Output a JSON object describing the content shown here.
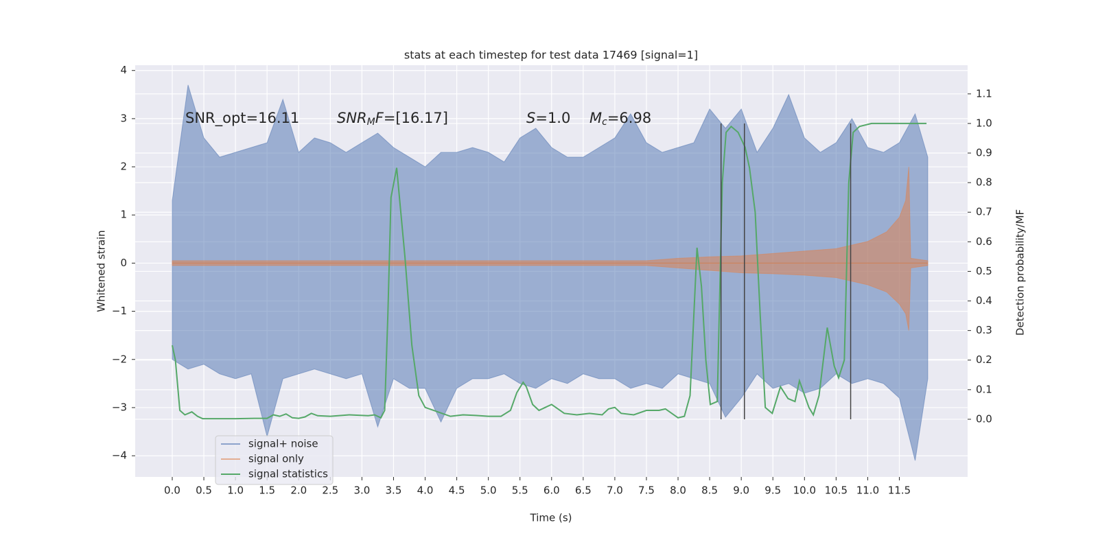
{
  "chart_data": {
    "type": "line",
    "title": "stats at each timestep for test data 17469 [signal=1]",
    "x_label": "Time (s)",
    "y_label": "Whitened strain",
    "y2_label": "Detection probability/MF",
    "xlim": [
      -0.586,
      12.58
    ],
    "ylim": [
      -4.44,
      4.11
    ],
    "y2lim": [
      -0.195,
      1.197
    ],
    "grid": true,
    "legend": "lower left",
    "xticks": [
      {
        "value": 0,
        "label": "0.0"
      },
      0.5,
      {
        "value": 1,
        "label": "1.0"
      },
      1.5,
      {
        "value": 2,
        "label": "2.0"
      },
      2.5,
      {
        "value": 3,
        "label": "3.0"
      },
      3.5,
      {
        "value": 4,
        "label": "4.0"
      },
      4.5,
      {
        "value": 5,
        "label": "5.0"
      },
      5.5,
      {
        "value": 6,
        "label": "6.0"
      },
      6.5,
      {
        "value": 7,
        "label": "7.0"
      },
      7.5,
      {
        "value": 8,
        "label": "8.0"
      },
      8.5,
      {
        "value": 9,
        "label": "9.0"
      },
      9.5,
      {
        "value": 10,
        "label": "10.0"
      },
      10.5,
      {
        "value": 11,
        "label": "11.0"
      },
      11.5
    ],
    "yticks": [
      {
        "value": -4,
        "label": "−4"
      },
      {
        "value": -3,
        "label": "−3"
      },
      {
        "value": -2,
        "label": "−2"
      },
      {
        "value": -1,
        "label": "−1"
      },
      0,
      1,
      2,
      3,
      4
    ],
    "y2ticks": [
      {
        "value": 0,
        "label": "0.0"
      },
      0.1,
      0.2,
      0.3,
      0.4,
      0.5,
      0.6,
      0.7,
      0.8,
      0.9,
      {
        "value": 1,
        "label": "1.0"
      },
      1.1
    ],
    "annotations": [
      [
        "SNR_opt=16.11"
      ],
      [
        "SNR",
        "M",
        "F",
        "=[16.17]"
      ],
      [
        "S",
        "=1.0"
      ],
      [
        "M",
        "c",
        "=6.98"
      ]
    ],
    "vlines": [
      8.68,
      9.05,
      10.73
    ],
    "vline_range": [
      0,
      1
    ],
    "series": [
      {
        "name": "signal+ noise",
        "color": "#4c72b0",
        "x": [
          0,
          0.25,
          0.5,
          0.75,
          1,
          1.25,
          1.5,
          1.75,
          2,
          2.25,
          2.5,
          2.75,
          3,
          3.25,
          3.5,
          3.75,
          4,
          4.25,
          4.5,
          4.75,
          5,
          5.25,
          5.5,
          5.75,
          6,
          6.25,
          6.5,
          6.75,
          7,
          7.25,
          7.5,
          7.75,
          8,
          8.25,
          8.5,
          8.75,
          9,
          9.25,
          9.5,
          9.75,
          10,
          10.25,
          10.5,
          10.75,
          11,
          11.25,
          11.5,
          11.75,
          11.95
        ],
        "values": [
          1.3,
          3.7,
          2.6,
          2.2,
          2.3,
          2.4,
          2.5,
          3.4,
          2.3,
          2.6,
          2.5,
          2.3,
          2.5,
          2.7,
          2.4,
          2.2,
          2.0,
          2.3,
          2.3,
          2.4,
          2.3,
          2.1,
          2.6,
          2.8,
          2.4,
          2.2,
          2.2,
          2.4,
          2.6,
          3.1,
          2.5,
          2.3,
          2.4,
          2.5,
          3.2,
          2.8,
          3.2,
          2.3,
          2.8,
          3.5,
          2.6,
          2.3,
          2.5,
          3.0,
          2.4,
          2.3,
          2.5,
          3.1,
          2.2
        ],
        "lower_values": [
          -2.0,
          -2.2,
          -2.1,
          -2.3,
          -2.4,
          -2.3,
          -3.6,
          -2.4,
          -2.3,
          -2.2,
          -2.3,
          -2.4,
          -2.3,
          -3.4,
          -2.4,
          -2.6,
          -2.6,
          -3.3,
          -2.6,
          -2.4,
          -2.4,
          -2.3,
          -2.5,
          -2.6,
          -2.4,
          -2.5,
          -2.3,
          -2.4,
          -2.4,
          -2.6,
          -2.5,
          -2.6,
          -2.3,
          -2.4,
          -2.5,
          -3.2,
          -2.8,
          -2.3,
          -2.6,
          -2.5,
          -2.7,
          -2.6,
          -2.3,
          -2.5,
          -2.4,
          -2.5,
          -2.8,
          -4.1,
          -2.4
        ]
      },
      {
        "name": "signal only",
        "color": "#dd8452",
        "x": [
          0,
          7.5,
          8.0,
          8.5,
          9.0,
          9.5,
          10.0,
          10.5,
          11.0,
          11.3,
          11.5,
          11.6,
          11.65,
          11.68,
          11.95
        ],
        "values": [
          0.05,
          0.05,
          0.1,
          0.13,
          0.15,
          0.2,
          0.25,
          0.3,
          0.45,
          0.65,
          0.95,
          1.3,
          2.0,
          0.1,
          0.05
        ],
        "lower_values": [
          -0.05,
          -0.05,
          -0.1,
          -0.15,
          -0.2,
          -0.22,
          -0.25,
          -0.3,
          -0.45,
          -0.6,
          -0.85,
          -1.05,
          -1.4,
          -0.1,
          -0.05
        ]
      },
      {
        "name": "signal statistics",
        "color": "#55a868",
        "axis": "y2",
        "x": [
          0,
          0.05,
          0.12,
          0.2,
          0.31,
          0.4,
          0.48,
          0.7,
          1.0,
          1.3,
          1.5,
          1.6,
          1.7,
          1.8,
          1.9,
          2.0,
          2.1,
          2.2,
          2.3,
          2.5,
          2.8,
          3.1,
          3.2,
          3.3,
          3.36,
          3.41,
          3.46,
          3.55,
          3.68,
          3.79,
          3.9,
          4.0,
          4.2,
          4.4,
          4.6,
          4.8,
          5.0,
          5.2,
          5.35,
          5.45,
          5.55,
          5.6,
          5.7,
          5.8,
          5.9,
          6.0,
          6.1,
          6.2,
          6.4,
          6.6,
          6.8,
          6.9,
          7.0,
          7.1,
          7.3,
          7.5,
          7.7,
          7.8,
          7.9,
          8.0,
          8.1,
          8.19,
          8.3,
          8.37,
          8.44,
          8.51,
          8.62,
          8.7,
          8.76,
          8.84,
          8.95,
          9.06,
          9.13,
          9.22,
          9.3,
          9.38,
          9.49,
          9.62,
          9.74,
          9.85,
          9.92,
          10.07,
          10.14,
          10.23,
          10.36,
          10.47,
          10.54,
          10.63,
          10.7,
          10.77,
          10.87,
          11.06,
          11.93
        ],
        "values": [
          0.25,
          0.2,
          0.03,
          0.015,
          0.025,
          0.01,
          0.002,
          0.002,
          0.002,
          0.003,
          0.003,
          0.015,
          0.01,
          0.018,
          0.005,
          0.003,
          0.008,
          0.02,
          0.012,
          0.01,
          0.015,
          0.012,
          0.015,
          0.005,
          0.03,
          0.35,
          0.75,
          0.85,
          0.55,
          0.25,
          0.08,
          0.04,
          0.025,
          0.01,
          0.015,
          0.013,
          0.01,
          0.01,
          0.03,
          0.09,
          0.125,
          0.11,
          0.05,
          0.03,
          0.04,
          0.05,
          0.035,
          0.02,
          0.015,
          0.02,
          0.015,
          0.035,
          0.04,
          0.02,
          0.015,
          0.03,
          0.03,
          0.035,
          0.02,
          0.005,
          0.01,
          0.08,
          0.58,
          0.45,
          0.2,
          0.05,
          0.06,
          0.8,
          0.97,
          0.99,
          0.97,
          0.92,
          0.85,
          0.7,
          0.35,
          0.04,
          0.02,
          0.11,
          0.07,
          0.06,
          0.13,
          0.04,
          0.015,
          0.08,
          0.31,
          0.18,
          0.14,
          0.2,
          0.8,
          0.97,
          0.99,
          1.0,
          1.0
        ]
      }
    ]
  }
}
